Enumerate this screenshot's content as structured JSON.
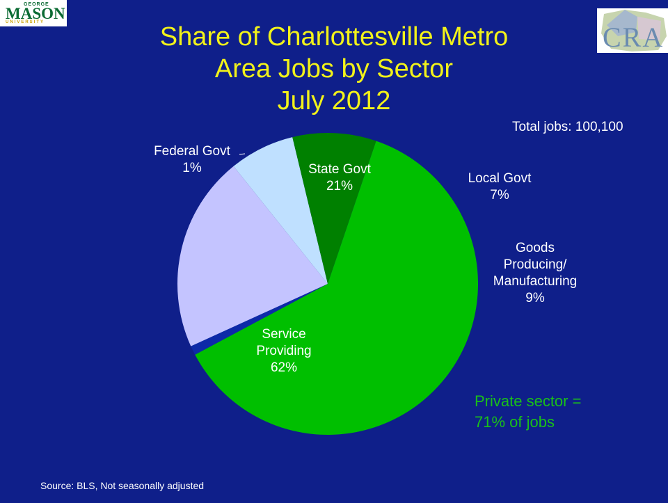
{
  "slide": {
    "title_lines": [
      "Share of Charlottesville Metro",
      "Area Jobs by Sector",
      "July 2012"
    ],
    "total_jobs": "Total jobs: 100,100",
    "private_sector_lines": [
      "Private sector =",
      "71% of jobs"
    ],
    "source": "Source: BLS, Not seasonally adjusted",
    "logo_left": {
      "word": "MASON",
      "top": "GEORGE",
      "bottom": "UNIVERSITY"
    },
    "logo_right": {
      "word": "CRA"
    }
  },
  "chart_data": {
    "type": "pie",
    "title": "Share of Charlottesville Metro Area Jobs by Sector July 2012",
    "slices": [
      {
        "name": "Federal Govt",
        "value": 1,
        "label": "1%",
        "color": "#0d2aa8"
      },
      {
        "name": "State Govt",
        "value": 21,
        "label": "21%",
        "color": "#c4c4ff"
      },
      {
        "name": "Local Govt",
        "value": 7,
        "label": "7%",
        "color": "#bfe0ff"
      },
      {
        "name": "Goods Producing/ Manufacturing",
        "value": 9,
        "label": "9%",
        "color": "#008000"
      },
      {
        "name": "Service Providing",
        "value": 62,
        "label": "62%",
        "color": "#00bf00"
      }
    ],
    "label_lines": [
      [
        "Federal Govt",
        "1%"
      ],
      [
        "State Govt",
        "21%"
      ],
      [
        "Local Govt",
        "7%"
      ],
      [
        "Goods",
        "Producing/",
        "Manufacturing",
        "9%"
      ],
      [
        "Service",
        "Providing",
        "62%"
      ]
    ],
    "label_colors": [
      "#ffffff",
      "#ffffff",
      "#ffffff",
      "#ffffff",
      "#ffffff"
    ]
  }
}
